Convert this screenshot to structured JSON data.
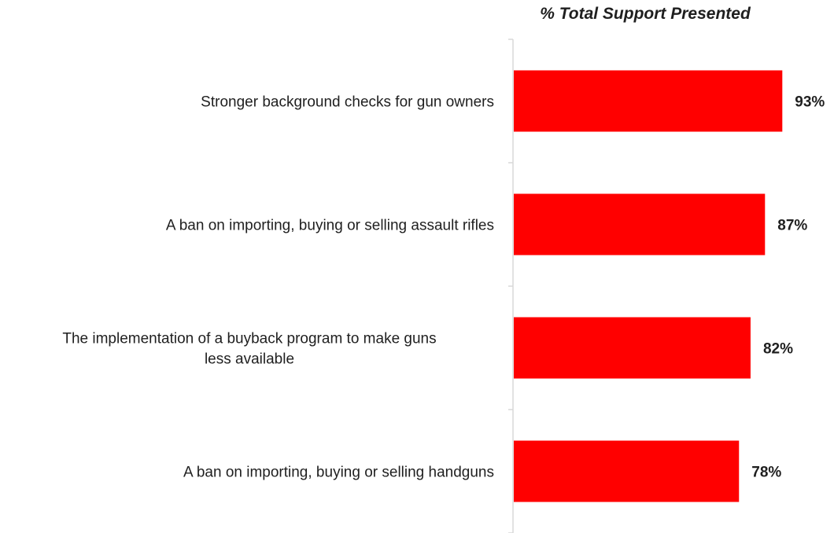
{
  "chart_data": {
    "type": "bar",
    "orientation": "horizontal",
    "title": "% Total Support Presented",
    "categories": [
      "Stronger background checks for gun owners",
      "A ban on importing, buying or selling assault rifles",
      "The implementation of a buyback program to make guns less available",
      "A ban on importing, buying or selling handguns"
    ],
    "category_lines": [
      [
        "Stronger background checks for gun owners"
      ],
      [
        "A ban on importing, buying or selling assault rifles"
      ],
      [
        "The implementation of a buyback program to make guns",
        "less available"
      ],
      [
        "A ban on importing, buying or selling handguns"
      ]
    ],
    "values": [
      93,
      87,
      82,
      78
    ],
    "data_labels": [
      "93%",
      "87%",
      "82%",
      "78%"
    ],
    "xlim": [
      0,
      100
    ],
    "grid": false,
    "legend": "none",
    "bar_color": "#ff0000",
    "axis_color": "#d9d9d9"
  }
}
